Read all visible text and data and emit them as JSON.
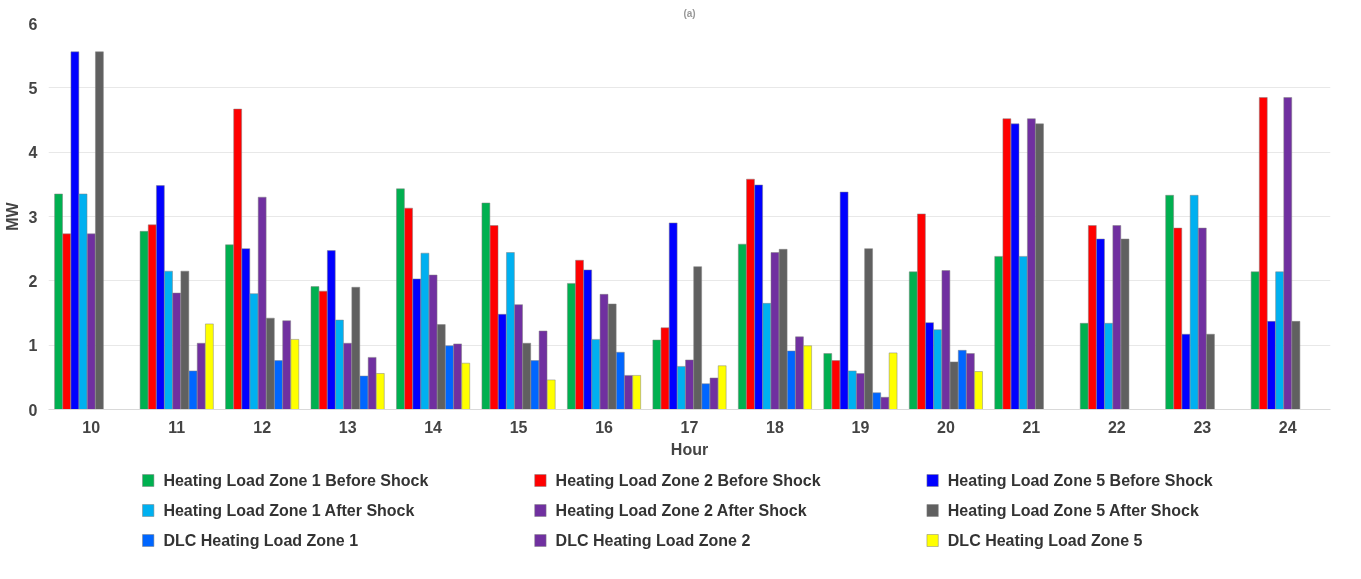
{
  "chart_data": {
    "type": "bar",
    "title": "(a)",
    "xlabel": "Hour",
    "ylabel": "MW",
    "categories": [
      "10",
      "11",
      "12",
      "13",
      "14",
      "15",
      "16",
      "17",
      "18",
      "19",
      "20",
      "21",
      "22",
      "23",
      "24"
    ],
    "ylim": [
      0,
      6
    ],
    "yticks": [
      0,
      1,
      2,
      3,
      4,
      5,
      6
    ],
    "grid": "y",
    "legend": "bottom",
    "series": [
      {
        "name": "Heating Load Zone 1 Before Shock",
        "color": "#00b050",
        "values": [
          3.35,
          2.77,
          2.56,
          1.91,
          3.43,
          3.21,
          1.96,
          1.08,
          2.57,
          0.87,
          2.14,
          2.38,
          1.34,
          3.33,
          2.14
        ]
      },
      {
        "name": "Heating Load Zone 2 Before Shock",
        "color": "#ff0000",
        "values": [
          2.73,
          2.87,
          4.67,
          1.84,
          3.13,
          2.86,
          2.32,
          1.27,
          3.58,
          0.76,
          3.04,
          4.52,
          2.86,
          2.82,
          4.85
        ]
      },
      {
        "name": "Heating Load Zone 5 Before Shock",
        "color": "#0000ff",
        "values": [
          5.56,
          3.48,
          2.5,
          2.47,
          2.03,
          1.48,
          2.17,
          2.9,
          3.49,
          3.38,
          1.35,
          4.44,
          2.65,
          1.17,
          1.37
        ]
      },
      {
        "name": "Heating Load Zone 1 After Shock",
        "color": "#00b0f0",
        "values": [
          3.35,
          2.15,
          1.8,
          1.39,
          2.43,
          2.44,
          1.09,
          0.67,
          1.65,
          0.6,
          1.24,
          2.38,
          1.34,
          3.33,
          2.14
        ]
      },
      {
        "name": "Heating Load Zone 2 After Shock",
        "color": "#7030a0",
        "values": [
          2.73,
          1.81,
          3.3,
          1.03,
          2.09,
          1.63,
          1.79,
          0.77,
          2.44,
          0.56,
          2.16,
          4.52,
          2.86,
          2.82,
          4.85
        ]
      },
      {
        "name": "Heating Load Zone 5 After Shock",
        "color": "#606060",
        "values": [
          5.56,
          2.15,
          1.42,
          1.9,
          1.32,
          1.03,
          1.64,
          2.22,
          2.49,
          2.5,
          0.74,
          4.44,
          2.65,
          1.17,
          1.37
        ]
      },
      {
        "name": "DLC Heating Load Zone 1",
        "color": "#0066ff",
        "values": [
          null,
          0.6,
          0.76,
          0.52,
          0.99,
          0.76,
          0.89,
          0.4,
          0.91,
          0.26,
          0.92,
          null,
          null,
          null,
          null
        ]
      },
      {
        "name": "DLC Heating Load Zone 2",
        "color": "#7030a0",
        "values": [
          null,
          1.03,
          1.38,
          0.81,
          1.02,
          1.22,
          0.53,
          0.49,
          1.13,
          0.19,
          0.87,
          null,
          null,
          null,
          null
        ]
      },
      {
        "name": "DLC Heating Load Zone 5",
        "color": "#ffff00",
        "values": [
          null,
          1.33,
          1.09,
          0.56,
          0.72,
          0.46,
          0.53,
          0.68,
          0.99,
          0.88,
          0.59,
          null,
          null,
          null,
          null
        ]
      }
    ]
  }
}
